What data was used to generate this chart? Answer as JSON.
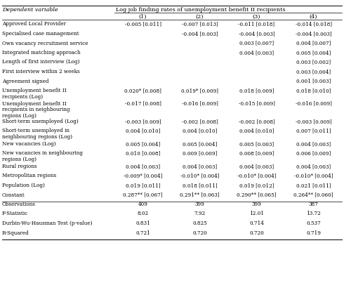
{
  "header_col": "Dependent variable",
  "header_span": "Log job finding rates of unemployment benefit II recipients",
  "col_headers": [
    "(1)",
    "(2)",
    "(3)",
    "(4)"
  ],
  "rows": [
    [
      "Approved Local Provider",
      "-0.005 [0.011]",
      "-0.007 [0.013]",
      "-0.011 [0.018]",
      "-0.014 [0.018]"
    ],
    [
      "Specialised case management",
      "",
      "-0.004 [0.003]",
      "-0.004 [0.003]",
      "-0.004 [0.003]"
    ],
    [
      "Own vacancy recruitment service",
      "",
      "",
      "0.003 [0.007]",
      "0.004 [0.007]"
    ],
    [
      "Integrated matching approach",
      "",
      "",
      "0.004 [0.003]",
      "0.005 [0.004]"
    ],
    [
      "Length of first interview (Log)",
      "",
      "",
      "",
      "0.003 [0.002]"
    ],
    [
      "First interview within 2 weeks",
      "",
      "",
      "",
      "0.003 [0.004]"
    ],
    [
      "Agreement signed",
      "",
      "",
      "",
      "0.001 [0.003]"
    ],
    [
      "Unemployment benefit II\nrecipients (Log)",
      "0.020* [0.008]",
      "0.019* [0.009]",
      "0.018 [0.009]",
      "0.018 [0.010]"
    ],
    [
      "Unemployment benefit II\nrecipients in neighbouring\nregions (Log)",
      "-0.017 [0.008]",
      "-0.016 [0.009]",
      "-0.015 [0.009]",
      "-0.016 [0.009]"
    ],
    [
      "Short-term unemployed (Log)",
      "-0.003 [0.009]",
      "-0.002 [0.008]",
      "-0.002 [0.008]",
      "-0.003 [0.009]"
    ],
    [
      "Short-term unemployed in\nneighbouring regions (Log)",
      "0.004 [0.010]",
      "0.004 [0.010]",
      "0.004 [0.010]",
      "0.007 [0.011]"
    ],
    [
      "New vacancies (Log)",
      "0.005 [0.004]",
      "0.005 [0.004]",
      "0.005 [0.003]",
      "0.004 [0.003]"
    ],
    [
      "New vacancies in neighbouring\nregions (Log)",
      "0.010 [0.008]",
      "0.009 [0.009]",
      "0.008 [0.009]",
      "0.006 [0.009]"
    ],
    [
      "Rural regions",
      "0.004 [0.003]",
      "0.004 [0.003]",
      "0.004 [0.003]",
      "0.004 [0.003]"
    ],
    [
      "Metropolitan regions",
      "-0.009* [0.004]",
      "-0.010* [0.004]",
      "-0.010* [0.004]",
      "-0.010* [0.004]"
    ],
    [
      "Population (Log)",
      "0.019 [0.011]",
      "0.018 [0.011]",
      "0.019 [0.012]",
      "0.021 [0.011]"
    ],
    [
      "Constant",
      "0.287** [0.067]",
      "0.291** [0.063]",
      "0.290** [0.065]",
      "0.264** [0.060]"
    ],
    [
      "Observations",
      "409",
      "399",
      "399",
      "387"
    ],
    [
      "F-Statistic",
      "8.02",
      "7.92",
      "12.01",
      "13.72"
    ],
    [
      "Durbin-Wu-Hausman Test (p-value)",
      "0.831",
      "0.825",
      "0.714",
      "0.537"
    ],
    [
      "R-Squared",
      "0.721",
      "0.720",
      "0.720",
      "0.719"
    ]
  ],
  "separator_after_idx": 16,
  "bg_color": "white",
  "text_color": "black"
}
